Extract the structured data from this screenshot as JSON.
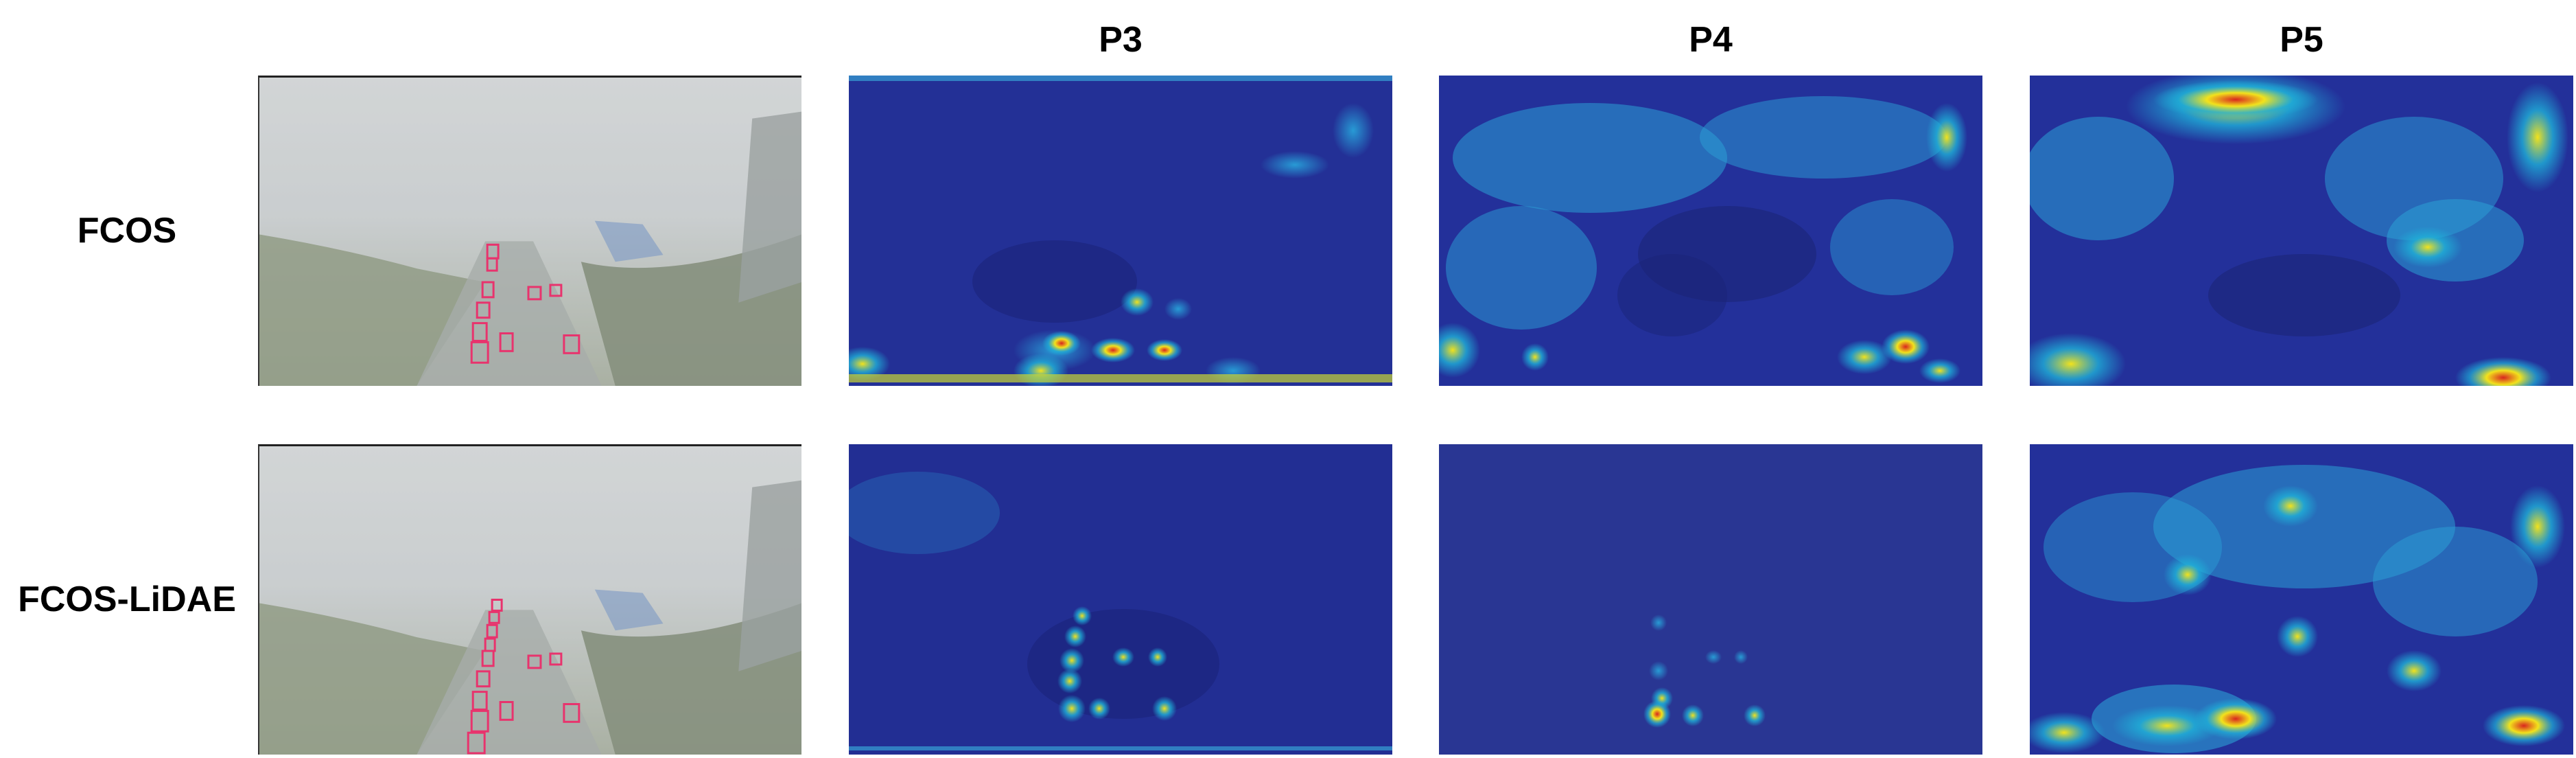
{
  "column_headers": [
    "P3",
    "P4",
    "P5"
  ],
  "row_labels": [
    "FCOS",
    "FCOS-LiDAE"
  ],
  "colors": {
    "heatmap_low": "#1f2a8c",
    "heatmap_mid": "#1fb0d8",
    "heatmap_high": "#f2e21c",
    "heatmap_peak": "#d8261f",
    "box": "#e8336d",
    "fog": "#c9cdcf"
  }
}
